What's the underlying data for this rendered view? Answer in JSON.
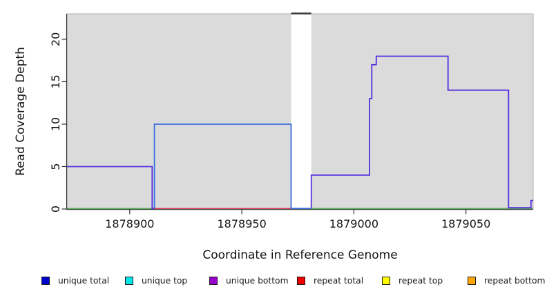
{
  "chart_data": {
    "type": "line",
    "subtype": "step-coverage",
    "title": "",
    "xlabel": "Coordinate in Reference Genome",
    "ylabel": "Read Coverage Depth",
    "xlim": [
      1878872,
      1879080
    ],
    "ylim": [
      0,
      23
    ],
    "x_ticks": [
      1878900,
      1878950,
      1879000,
      1879050
    ],
    "y_ticks": [
      0,
      5,
      10,
      15,
      20
    ],
    "grid": "off",
    "panel_bg": "#dbdbdb",
    "panel_border": "#b0b0b0",
    "axis_color": "#2e2e2e",
    "masked_region": {
      "x0": 1878972,
      "x1": 1878981,
      "fill": "#ffffff",
      "top_marker_color": "#3f3f3f"
    },
    "series": [
      {
        "name": "baseline",
        "color": "#52b152",
        "width": 1.5,
        "points": [
          [
            1878872,
            0
          ],
          [
            1879080,
            0
          ]
        ]
      },
      {
        "name": "repeat total",
        "color": "#de3d54",
        "width": 1.5,
        "points": [
          [
            1878911,
            0
          ],
          [
            1878972,
            0
          ]
        ]
      },
      {
        "name": "unique total",
        "color": "#3a6fe0",
        "width": 1.8,
        "points": [
          [
            1878911,
            0
          ],
          [
            1878911,
            10
          ],
          [
            1878972,
            10
          ],
          [
            1878972,
            0
          ],
          [
            1878981,
            0
          ]
        ]
      },
      {
        "name": "unique bottom (left)",
        "color": "#5630df",
        "width": 1.8,
        "points": [
          [
            1878872,
            5
          ],
          [
            1878910,
            5
          ],
          [
            1878910,
            0
          ],
          [
            1878911,
            0
          ]
        ]
      },
      {
        "name": "unique bottom (right)",
        "color": "#5630df",
        "width": 1.8,
        "lift_zero": true,
        "points": [
          [
            1878981,
            0
          ],
          [
            1878981,
            4
          ],
          [
            1879007,
            4
          ],
          [
            1879007,
            13
          ],
          [
            1879008,
            13
          ],
          [
            1879008,
            17
          ],
          [
            1879010,
            17
          ],
          [
            1879010,
            18
          ],
          [
            1879042,
            18
          ],
          [
            1879042,
            14
          ],
          [
            1879069,
            14
          ],
          [
            1879069,
            0
          ],
          [
            1879079,
            0
          ],
          [
            1879079,
            1
          ],
          [
            1879080,
            1
          ]
        ]
      }
    ]
  },
  "legend": {
    "items": [
      {
        "label": "unique total",
        "color": "#0000cd"
      },
      {
        "label": "unique top",
        "color": "#00e5e5"
      },
      {
        "label": "unique bottom",
        "color": "#9900cc"
      },
      {
        "label": "repeat total",
        "color": "#ee0000"
      },
      {
        "label": "repeat top",
        "color": "#ffff00"
      },
      {
        "label": "repeat bottom",
        "color": "#ffa500"
      }
    ]
  }
}
